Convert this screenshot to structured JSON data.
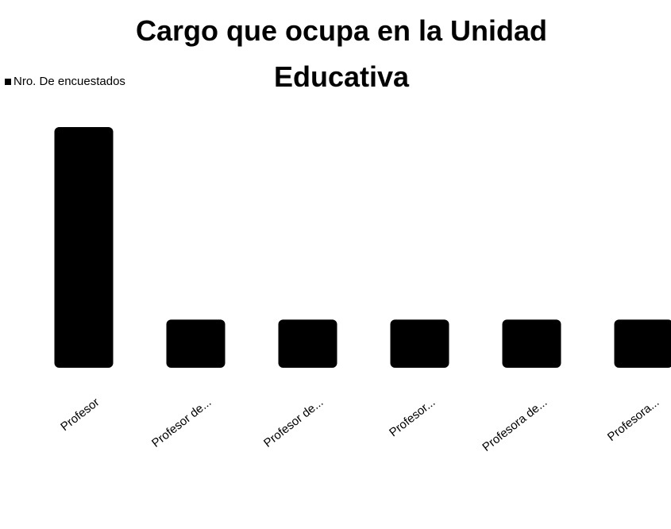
{
  "chart_data": {
    "type": "bar",
    "title": "Cargo que ocupa en la Unidad Educativa",
    "legend": "Nro. De encuestados",
    "categories": [
      "Profesor",
      "Profesor de...",
      "Profesor de...",
      "Profesor...",
      "Profesora de...",
      "Profesora..."
    ],
    "values": [
      5,
      1,
      1,
      1,
      1,
      1
    ],
    "color": "#000000"
  }
}
